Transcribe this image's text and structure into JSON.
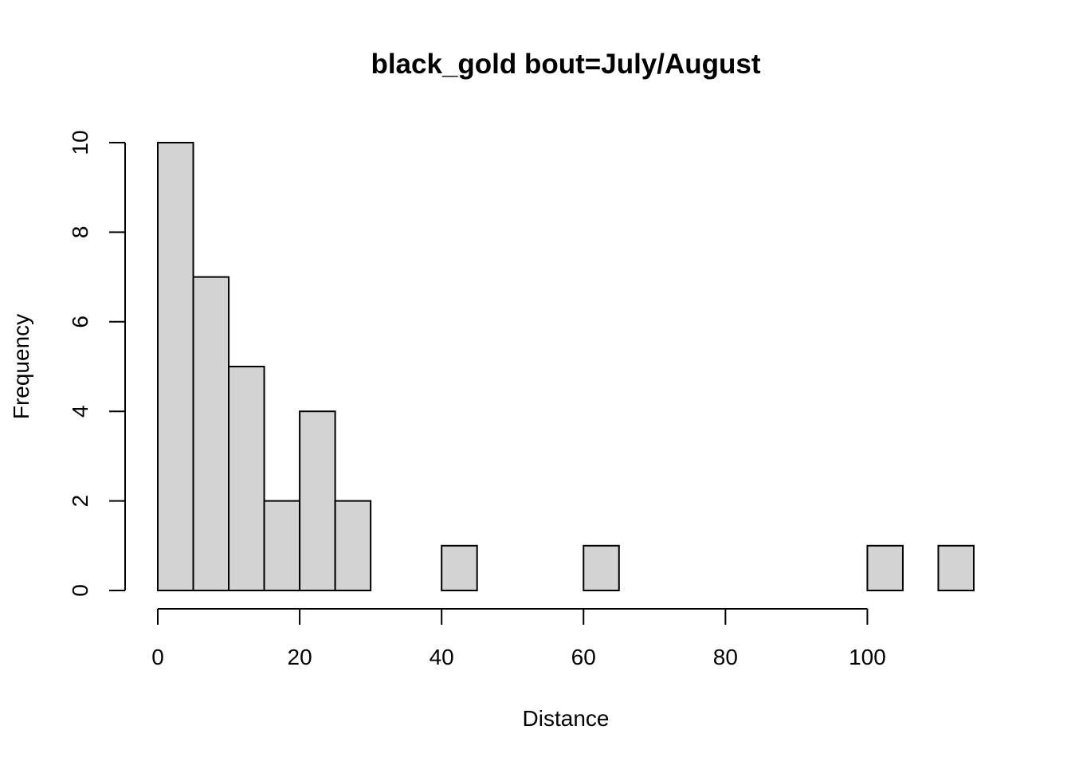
{
  "chart_data": {
    "type": "bar",
    "title": "black_gold  bout=July/August",
    "xlabel": "Distance",
    "ylabel": "Frequency",
    "bins": [
      {
        "start": 0,
        "end": 5,
        "count": 10
      },
      {
        "start": 5,
        "end": 10,
        "count": 7
      },
      {
        "start": 10,
        "end": 15,
        "count": 5
      },
      {
        "start": 15,
        "end": 20,
        "count": 2
      },
      {
        "start": 20,
        "end": 25,
        "count": 4
      },
      {
        "start": 25,
        "end": 30,
        "count": 2
      },
      {
        "start": 30,
        "end": 35,
        "count": 0
      },
      {
        "start": 35,
        "end": 40,
        "count": 0
      },
      {
        "start": 40,
        "end": 45,
        "count": 1
      },
      {
        "start": 45,
        "end": 50,
        "count": 0
      },
      {
        "start": 50,
        "end": 55,
        "count": 0
      },
      {
        "start": 55,
        "end": 60,
        "count": 0
      },
      {
        "start": 60,
        "end": 65,
        "count": 1
      },
      {
        "start": 65,
        "end": 70,
        "count": 0
      },
      {
        "start": 70,
        "end": 75,
        "count": 0
      },
      {
        "start": 75,
        "end": 80,
        "count": 0
      },
      {
        "start": 80,
        "end": 85,
        "count": 0
      },
      {
        "start": 85,
        "end": 90,
        "count": 0
      },
      {
        "start": 90,
        "end": 95,
        "count": 0
      },
      {
        "start": 95,
        "end": 100,
        "count": 0
      },
      {
        "start": 100,
        "end": 105,
        "count": 1
      },
      {
        "start": 105,
        "end": 110,
        "count": 0
      },
      {
        "start": 110,
        "end": 115,
        "count": 1
      }
    ],
    "xlim": [
      0,
      115
    ],
    "ylim": [
      0,
      10
    ],
    "x_ticks": [
      "0",
      "20",
      "40",
      "60",
      "80",
      "100"
    ],
    "y_ticks": [
      "0",
      "2",
      "4",
      "6",
      "8",
      "10"
    ],
    "colors": {
      "bar_fill": "#d3d3d3",
      "bar_stroke": "#000000",
      "axis": "#000000",
      "background": "#ffffff"
    },
    "grid": false
  }
}
